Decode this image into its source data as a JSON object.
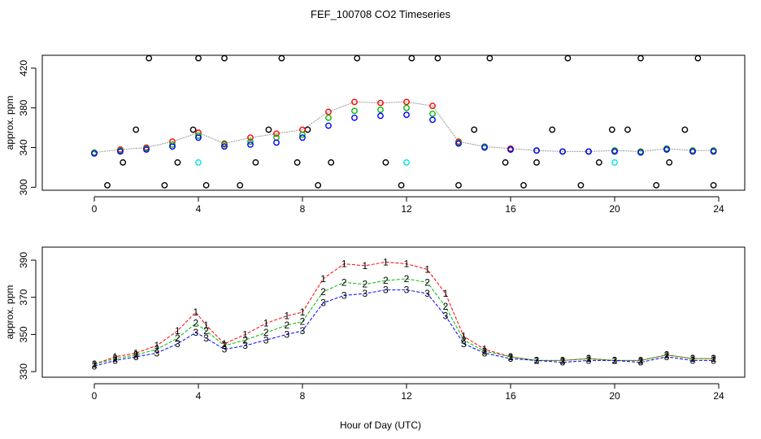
{
  "figure": {
    "title": "FEF_100708  CO2 Timeseries",
    "xlabel": "Hour of Day (UTC)"
  },
  "chart_data": [
    {
      "type": "scatter",
      "name": "raw-co2",
      "ylabel": "approx. ppm",
      "xlim": [
        -2,
        25
      ],
      "ylim": [
        297,
        433
      ],
      "xticks": [
        0,
        4,
        8,
        12,
        16,
        20,
        24
      ],
      "yticks": [
        300,
        340,
        380,
        420
      ],
      "ytick_labels": [
        "300",
        "340",
        "380",
        "420"
      ],
      "grid": false,
      "series_colors": {
        "red": "#ff0000",
        "green": "#00bb00",
        "blue": "#0000ff",
        "black": "#000000",
        "cyan": "#00e5ee",
        "line": "#999999"
      },
      "red_x": [
        0,
        1,
        2,
        3,
        4,
        5,
        6,
        7,
        8,
        9,
        10,
        11,
        12,
        13,
        14,
        15,
        16,
        17,
        18,
        19,
        20,
        21,
        22,
        23,
        23.8
      ],
      "red_y": [
        335,
        338,
        340,
        346,
        355,
        344,
        350,
        354,
        358,
        376,
        386,
        385,
        386,
        382,
        346,
        341,
        339,
        337,
        336,
        336,
        337,
        336,
        339,
        337,
        337
      ],
      "green_x": [
        0,
        1,
        2,
        3,
        4,
        5,
        6,
        7,
        8,
        9,
        10,
        11,
        12,
        13,
        14,
        15,
        16,
        17,
        18,
        19,
        20,
        21,
        22,
        23,
        23.8
      ],
      "green_y": [
        335,
        337,
        339,
        343,
        352,
        343,
        346,
        350,
        353,
        370,
        377,
        378,
        380,
        374,
        345,
        341,
        338,
        337,
        336,
        336,
        337,
        336,
        339,
        337,
        337
      ],
      "blue_x": [
        0,
        1,
        2,
        3,
        4,
        5,
        6,
        7,
        8,
        9,
        10,
        11,
        12,
        13,
        14,
        15,
        16,
        17,
        18,
        19,
        20,
        21,
        22,
        23,
        23.8
      ],
      "blue_y": [
        334,
        336,
        338,
        341,
        350,
        341,
        343,
        345,
        350,
        362,
        370,
        372,
        373,
        368,
        344,
        340,
        338,
        337,
        336,
        336,
        336,
        335,
        338,
        336,
        336
      ],
      "black_x": [
        0.5,
        1.1,
        1.6,
        2.1,
        2.7,
        3.2,
        3.8,
        4.0,
        4.3,
        5.0,
        5.6,
        6.2,
        6.7,
        7.2,
        7.8,
        8.2,
        8.6,
        9.1,
        10.1,
        11.2,
        11.8,
        12.2,
        13.2,
        14.0,
        14.6,
        15.2,
        15.8,
        16.5,
        17.0,
        17.6,
        18.2,
        18.7,
        19.4,
        19.9,
        20.5,
        21.0,
        21.6,
        22.1,
        22.7,
        23.2,
        23.8
      ],
      "black_y": [
        302,
        325,
        358,
        430,
        302,
        325,
        358,
        430,
        302,
        430,
        302,
        325,
        358,
        430,
        325,
        358,
        302,
        325,
        430,
        325,
        302,
        430,
        430,
        302,
        358,
        430,
        325,
        302,
        325,
        358,
        430,
        302,
        325,
        358,
        358,
        430,
        302,
        325,
        358,
        430,
        302
      ],
      "cyan_x": [
        4.0,
        12.0,
        20.0
      ],
      "cyan_y": [
        325,
        325,
        325
      ]
    },
    {
      "type": "scatter",
      "name": "label-co2",
      "ylabel": "approx. ppm",
      "xlim": [
        -2,
        25
      ],
      "ylim": [
        327,
        397
      ],
      "xticks": [
        0,
        4,
        8,
        12,
        16,
        20,
        24
      ],
      "yticks": [
        330,
        350,
        370,
        390
      ],
      "ytick_labels": [
        "330",
        "350",
        "370",
        "390"
      ],
      "grid": false,
      "point_labels": {
        "red": "1",
        "green": "2",
        "blue": "3"
      },
      "series_colors": {
        "red": "#ff0000",
        "green": "#00bb00",
        "blue": "#0000ff"
      },
      "red_x": [
        0,
        0.8,
        1.6,
        2.4,
        3.2,
        3.9,
        4.3,
        5.0,
        5.8,
        6.6,
        7.4,
        8.0,
        8.8,
        9.6,
        10.4,
        11.2,
        12.0,
        12.8,
        13.5,
        14.2,
        15.0,
        16.0,
        17.0,
        18.0,
        19.0,
        20.0,
        21.0,
        22.0,
        23.0,
        23.8
      ],
      "red_y": [
        334,
        338,
        340,
        344,
        352,
        362,
        355,
        345,
        350,
        356,
        360,
        362,
        380,
        388,
        387,
        389,
        388,
        385,
        372,
        349,
        342,
        338,
        336,
        336,
        337,
        336,
        336,
        339,
        337,
        337
      ],
      "green_x": [
        0,
        0.8,
        1.6,
        2.4,
        3.2,
        3.9,
        4.3,
        5.0,
        5.8,
        6.6,
        7.4,
        8.0,
        8.8,
        9.6,
        10.4,
        11.2,
        12.0,
        12.8,
        13.5,
        14.2,
        15.0,
        16.0,
        17.0,
        18.0,
        19.0,
        20.0,
        21.0,
        22.0,
        23.0,
        23.8
      ],
      "green_y": [
        334,
        337,
        339,
        342,
        348,
        356,
        352,
        344,
        347,
        351,
        355,
        357,
        373,
        378,
        377,
        379,
        380,
        378,
        365,
        347,
        341,
        338,
        336,
        336,
        337,
        336,
        336,
        339,
        337,
        337
      ],
      "blue_x": [
        0,
        0.8,
        1.6,
        2.4,
        3.2,
        3.9,
        4.3,
        5.0,
        5.8,
        6.6,
        7.4,
        8.0,
        8.8,
        9.6,
        10.4,
        11.2,
        12.0,
        12.8,
        13.5,
        14.2,
        15.0,
        16.0,
        17.0,
        18.0,
        19.0,
        20.0,
        21.0,
        22.0,
        23.0,
        23.8
      ],
      "blue_y": [
        333,
        336,
        338,
        340,
        345,
        351,
        348,
        342,
        344,
        347,
        350,
        352,
        367,
        371,
        372,
        374,
        374,
        372,
        360,
        345,
        340,
        337,
        336,
        335,
        336,
        336,
        335,
        338,
        336,
        336
      ]
    }
  ]
}
